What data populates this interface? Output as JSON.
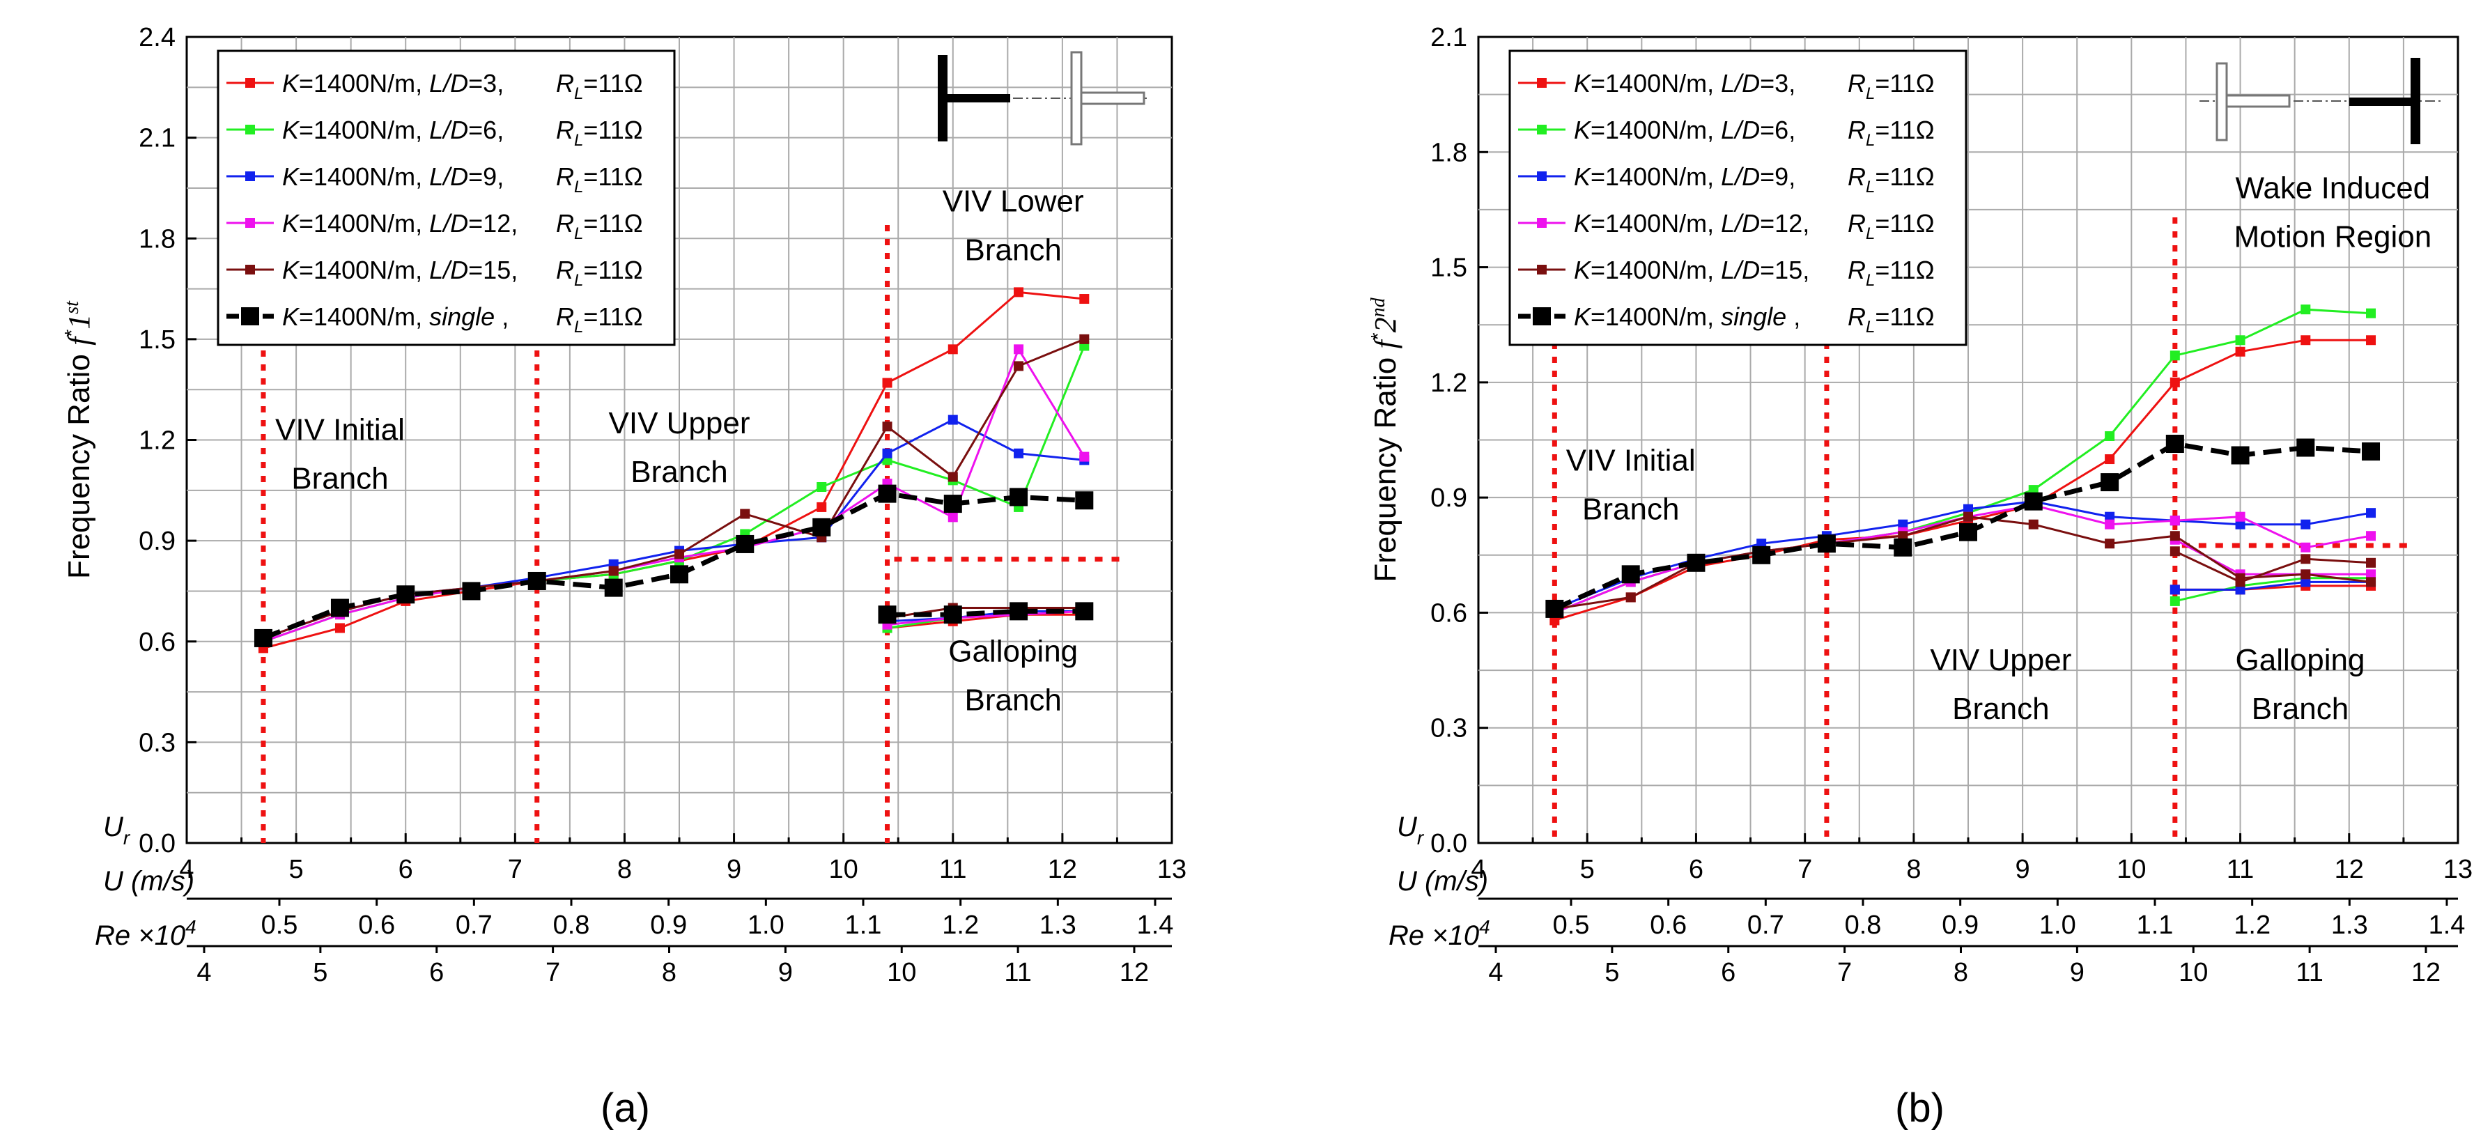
{
  "chart_data": [
    {
      "type": "line",
      "panel_label": "(a)",
      "ylabel": "Frequency Ratio",
      "ylabel_symbol": {
        "base": "f",
        "sup": "*",
        "tail": "1",
        "tail_sup": "st"
      },
      "ylim": [
        0.0,
        2.4
      ],
      "yticks": [
        "0.0",
        "0.3",
        "0.6",
        "0.9",
        "1.2",
        "1.5",
        "1.8",
        "2.1",
        "2.4"
      ],
      "ur_label": "U",
      "ur_sub": "r",
      "xlim": [
        4,
        13
      ],
      "xticks": [
        "4",
        "5",
        "6",
        "7",
        "8",
        "9",
        "10",
        "11",
        "12",
        "13"
      ],
      "u_label": "U (m/s)",
      "u_ticks": [
        "0.5",
        "0.6",
        "0.7",
        "0.8",
        "0.9",
        "1.0",
        "1.1",
        "1.2",
        "1.3",
        "1.4"
      ],
      "re_label": "Re ×10",
      "re_sup": "4",
      "re_ticks": [
        "4",
        "5",
        "6",
        "7",
        "8",
        "9",
        "10",
        "11",
        "12"
      ],
      "series": [
        {
          "key": "K",
          "mid": "=1400N/m, ",
          "ld": "L/D",
          "ldval": "=3,",
          "rl": "=11Ω",
          "color": "#ee1111",
          "big": false,
          "x": [
            4.7,
            5.4,
            6.0,
            6.6,
            7.2,
            7.9,
            8.5,
            9.1,
            9.8,
            10.4,
            11.0,
            11.6,
            12.2,
            10.4,
            11.0,
            11.6,
            12.2
          ],
          "y": [
            0.58,
            0.64,
            0.72,
            0.75,
            0.78,
            0.8,
            0.84,
            0.88,
            1.0,
            1.37,
            1.47,
            1.64,
            1.62,
            0.64,
            0.66,
            0.68,
            0.68
          ],
          "breaks": [
            13
          ]
        },
        {
          "key": "K",
          "mid": "=1400N/m, ",
          "ld": "L/D",
          "ldval": "=6,",
          "rl": "=11Ω",
          "color": "#22ee22",
          "big": false,
          "x": [
            4.7,
            5.4,
            6.0,
            6.6,
            7.2,
            7.9,
            8.5,
            9.1,
            9.8,
            10.4,
            11.0,
            11.6,
            12.2,
            10.4,
            11.0,
            11.6,
            12.2
          ],
          "y": [
            0.6,
            0.68,
            0.73,
            0.76,
            0.78,
            0.8,
            0.84,
            0.92,
            1.06,
            1.14,
            1.08,
            1.0,
            1.48,
            0.64,
            0.67,
            0.69,
            0.69
          ],
          "breaks": [
            13
          ]
        },
        {
          "key": "K",
          "mid": "=1400N/m, ",
          "ld": "L/D",
          "ldval": "=9,",
          "rl": "=11Ω",
          "color": "#1122ee",
          "big": false,
          "x": [
            4.7,
            5.4,
            6.0,
            6.6,
            7.2,
            7.9,
            8.5,
            9.1,
            9.8,
            10.4,
            11.0,
            11.6,
            12.2,
            10.4,
            11.0,
            11.6,
            12.2
          ],
          "y": [
            0.61,
            0.69,
            0.74,
            0.76,
            0.79,
            0.83,
            0.87,
            0.89,
            0.91,
            1.16,
            1.26,
            1.16,
            1.14,
            0.66,
            0.67,
            0.69,
            0.69
          ],
          "breaks": [
            13
          ]
        },
        {
          "key": "K",
          "mid": "=1400N/m, ",
          "ld": "L/D",
          "ldval": "=12,",
          "rl": "=11Ω",
          "color": "#ee11ee",
          "big": false,
          "x": [
            4.7,
            5.4,
            6.0,
            6.6,
            7.2,
            7.9,
            8.5,
            9.1,
            9.8,
            10.4,
            11.0,
            11.6,
            12.2,
            10.4,
            11.0,
            11.6,
            12.2
          ],
          "y": [
            0.6,
            0.68,
            0.73,
            0.76,
            0.78,
            0.81,
            0.85,
            0.88,
            0.94,
            1.07,
            0.97,
            1.47,
            1.15,
            0.65,
            0.67,
            0.68,
            0.69
          ],
          "breaks": [
            13
          ]
        },
        {
          "key": "K",
          "mid": "=1400N/m, ",
          "ld": "L/D",
          "ldval": "=15,",
          "rl": "=11Ω",
          "color": "#7a0f0f",
          "big": false,
          "x": [
            4.7,
            5.4,
            6.0,
            6.6,
            7.2,
            7.9,
            8.5,
            9.1,
            9.8,
            10.4,
            11.0,
            11.6,
            12.2,
            10.4,
            11.0,
            11.6,
            12.2
          ],
          "y": [
            0.61,
            0.69,
            0.74,
            0.76,
            0.78,
            0.81,
            0.86,
            0.98,
            0.91,
            1.24,
            1.09,
            1.42,
            1.5,
            0.67,
            0.7,
            0.7,
            0.7
          ],
          "breaks": [
            13
          ]
        },
        {
          "key": "K",
          "mid": "=1400N/m,  ",
          "ld": "single",
          "ldval": " ,",
          "rl": "=11Ω",
          "color": "#000000",
          "big": true,
          "x": [
            4.7,
            5.4,
            6.0,
            6.6,
            7.2,
            7.9,
            8.5,
            9.1,
            9.8,
            10.4,
            11.0,
            11.6,
            12.2,
            10.4,
            11.0,
            11.6,
            12.2
          ],
          "y": [
            0.61,
            0.7,
            0.74,
            0.75,
            0.78,
            0.76,
            0.8,
            0.89,
            0.94,
            1.04,
            1.01,
            1.03,
            1.02,
            0.68,
            0.68,
            0.69,
            0.69
          ],
          "breaks": [
            13
          ]
        }
      ],
      "vlines_x": [
        4.7,
        7.2,
        10.4
      ],
      "hline": {
        "x1": 10.4,
        "x2": 12.55,
        "y": 0.845
      },
      "annotations": [
        {
          "lines": [
            "VIV Initial",
            "Branch"
          ],
          "x": 5.4,
          "y": 1.2
        },
        {
          "lines": [
            "VIV Upper",
            "Branch"
          ],
          "x": 8.5,
          "y": 1.22
        },
        {
          "lines": [
            "VIV Lower",
            "Branch"
          ],
          "x": 11.55,
          "y": 1.88
        },
        {
          "lines": [
            "Galloping",
            "Branch"
          ],
          "x": 11.55,
          "y": 0.54
        }
      ],
      "legend_position": "top-left",
      "schematic_position": "top-right"
    },
    {
      "type": "line",
      "panel_label": "(b)",
      "ylabel": "Frequency Ratio",
      "ylabel_symbol": {
        "base": "f",
        "sup": "*",
        "tail": "2",
        "tail_sup": "nd"
      },
      "ylim": [
        0.0,
        2.1
      ],
      "yticks": [
        "0.0",
        "0.3",
        "0.6",
        "0.9",
        "1.2",
        "1.5",
        "1.8",
        "2.1"
      ],
      "ur_label": "U",
      "ur_sub": "r",
      "xlim": [
        4,
        13
      ],
      "xticks": [
        "4",
        "5",
        "6",
        "7",
        "8",
        "9",
        "10",
        "11",
        "12",
        "13"
      ],
      "u_label": "U (m/s)",
      "u_ticks": [
        "0.5",
        "0.6",
        "0.7",
        "0.8",
        "0.9",
        "1.0",
        "1.1",
        "1.2",
        "1.3",
        "1.4"
      ],
      "re_label": "Re ×10",
      "re_sup": "4",
      "re_ticks": [
        "4",
        "5",
        "6",
        "7",
        "8",
        "9",
        "10",
        "11",
        "12"
      ],
      "series": [
        {
          "key": "K",
          "mid": "=1400N/m, ",
          "ld": "L/D",
          "ldval": "=3,",
          "rl": "=11Ω",
          "color": "#ee1111",
          "big": false,
          "x": [
            4.7,
            5.4,
            6.0,
            6.6,
            7.2,
            7.9,
            8.5,
            9.1,
            9.8,
            10.4,
            11.0,
            11.6,
            12.2,
            10.4,
            11.0,
            11.6,
            12.2
          ],
          "y": [
            0.58,
            0.64,
            0.72,
            0.75,
            0.79,
            0.8,
            0.84,
            0.88,
            1.0,
            1.2,
            1.28,
            1.31,
            1.31,
            0.66,
            0.66,
            0.67,
            0.67
          ],
          "breaks": [
            13
          ]
        },
        {
          "key": "K",
          "mid": "=1400N/m, ",
          "ld": "L/D",
          "ldval": "=6,",
          "rl": "=11Ω",
          "color": "#22ee22",
          "big": false,
          "x": [
            4.7,
            5.4,
            6.0,
            6.6,
            7.2,
            7.9,
            8.5,
            9.1,
            9.8,
            10.4,
            11.0,
            11.6,
            12.2,
            10.4,
            11.0,
            11.6,
            12.2
          ],
          "y": [
            0.6,
            0.68,
            0.73,
            0.76,
            0.78,
            0.81,
            0.86,
            0.92,
            1.06,
            1.27,
            1.31,
            1.39,
            1.38,
            0.63,
            0.67,
            0.69,
            0.69
          ],
          "breaks": [
            13
          ]
        },
        {
          "key": "K",
          "mid": "=1400N/m, ",
          "ld": "L/D",
          "ldval": "=9,",
          "rl": "=11Ω",
          "color": "#1122ee",
          "big": false,
          "x": [
            4.7,
            5.4,
            6.0,
            6.6,
            7.2,
            7.9,
            8.5,
            9.1,
            9.8,
            10.4,
            11.0,
            11.6,
            12.2,
            10.4,
            11.0,
            11.6,
            12.2
          ],
          "y": [
            0.61,
            0.69,
            0.74,
            0.78,
            0.8,
            0.83,
            0.87,
            0.89,
            0.85,
            0.84,
            0.83,
            0.83,
            0.86,
            0.66,
            0.66,
            0.68,
            0.68
          ],
          "breaks": [
            13
          ]
        },
        {
          "key": "K",
          "mid": "=1400N/m, ",
          "ld": "L/D",
          "ldval": "=12,",
          "rl": "=11Ω",
          "color": "#ee11ee",
          "big": false,
          "x": [
            4.7,
            5.4,
            6.0,
            6.6,
            7.2,
            7.9,
            8.5,
            9.1,
            9.8,
            10.4,
            11.0,
            11.6,
            12.2,
            10.4,
            11.0,
            11.6,
            12.2
          ],
          "y": [
            0.6,
            0.68,
            0.73,
            0.76,
            0.78,
            0.81,
            0.85,
            0.88,
            0.83,
            0.84,
            0.85,
            0.77,
            0.8,
            0.79,
            0.7,
            0.7,
            0.7
          ],
          "breaks": [
            13
          ]
        },
        {
          "key": "K",
          "mid": "=1400N/m, ",
          "ld": "L/D",
          "ldval": "=15,",
          "rl": "=11Ω",
          "color": "#7a0f0f",
          "big": false,
          "x": [
            4.7,
            5.4,
            6.0,
            6.6,
            7.2,
            7.9,
            8.5,
            9.1,
            9.8,
            10.4,
            11.0,
            11.6,
            12.2,
            10.4,
            11.0,
            11.6,
            12.2
          ],
          "y": [
            0.61,
            0.64,
            0.73,
            0.76,
            0.78,
            0.8,
            0.85,
            0.83,
            0.78,
            0.8,
            0.69,
            0.7,
            0.68,
            0.76,
            0.68,
            0.74,
            0.73
          ],
          "breaks": [
            13
          ]
        },
        {
          "key": "K",
          "mid": "=1400N/m,  ",
          "ld": "single",
          "ldval": " ,",
          "rl": "=11Ω",
          "color": "#000000",
          "big": true,
          "x": [
            4.7,
            5.4,
            6.0,
            6.6,
            7.2,
            7.9,
            8.5,
            9.1,
            9.8,
            10.4,
            11.0,
            11.6,
            12.2
          ],
          "y": [
            0.61,
            0.7,
            0.73,
            0.75,
            0.78,
            0.77,
            0.81,
            0.89,
            0.94,
            1.04,
            1.01,
            1.03,
            1.02
          ],
          "breaks": []
        }
      ],
      "vlines_x": [
        4.7,
        7.2,
        10.4
      ],
      "hline": {
        "x1": 10.4,
        "x2": 12.55,
        "y": 0.775
      },
      "annotations": [
        {
          "lines": [
            "VIV Initial",
            "Branch"
          ],
          "x": 5.4,
          "y": 0.97
        },
        {
          "lines": [
            "VIV Upper",
            "Branch"
          ],
          "x": 8.8,
          "y": 0.45
        },
        {
          "lines": [
            "Wake Induced",
            "Motion Region"
          ],
          "x": 11.85,
          "y": 1.68
        },
        {
          "lines": [
            "Galloping",
            "Branch"
          ],
          "x": 11.55,
          "y": 0.45
        }
      ],
      "legend_position": "top-left",
      "schematic_position": "top-right"
    }
  ]
}
